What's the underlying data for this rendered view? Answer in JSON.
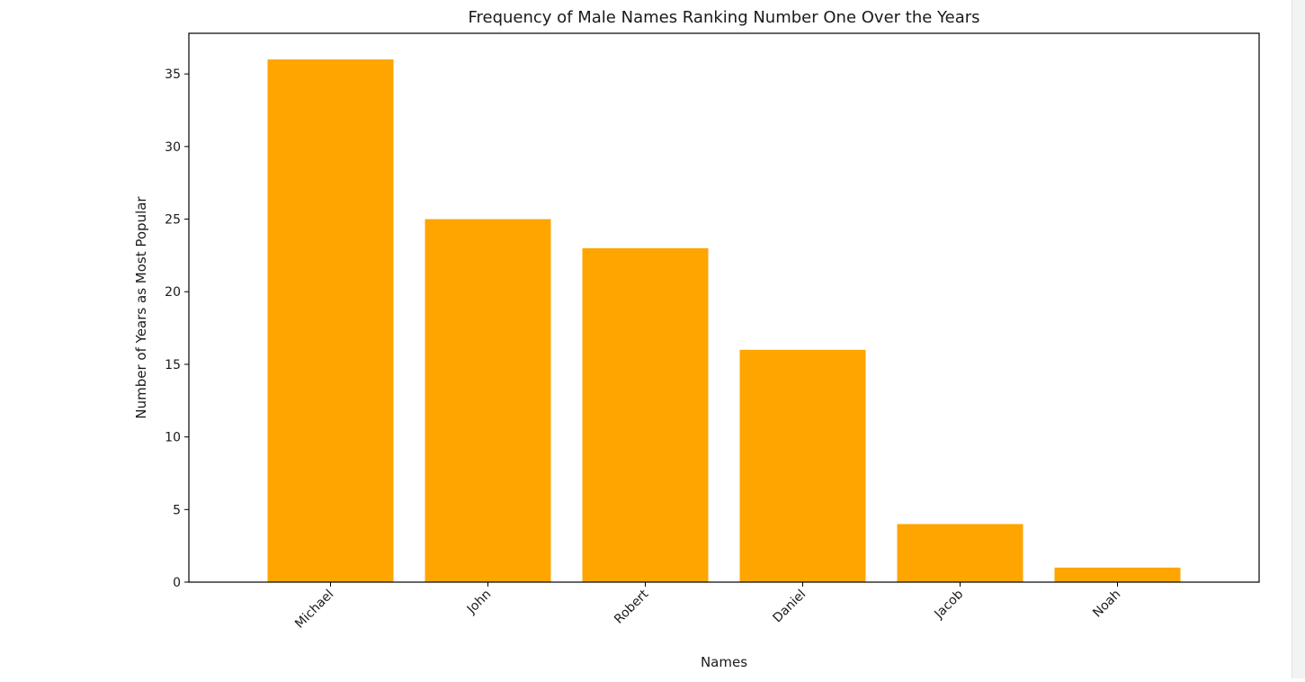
{
  "chart_data": {
    "type": "bar",
    "title": "Frequency of Male Names Ranking Number One Over the Years",
    "xlabel": "Names",
    "ylabel": "Number of Years as Most Popular",
    "categories": [
      "Michael",
      "John",
      "Robert",
      "Daniel",
      "Jacob",
      "Noah"
    ],
    "values": [
      36,
      25,
      23,
      16,
      4,
      1
    ],
    "ylim": [
      0,
      37.8
    ],
    "yticks": [
      0,
      5,
      10,
      15,
      20,
      25,
      30,
      35
    ],
    "xtick_rotation_deg": 45,
    "bar_color": "#FFA500",
    "grid": false,
    "legend": "none"
  }
}
